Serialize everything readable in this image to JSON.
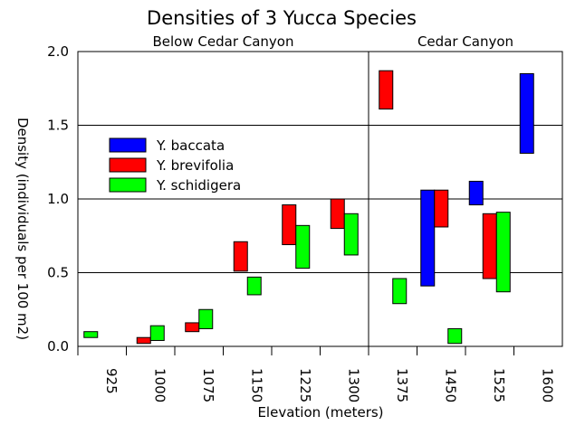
{
  "chart_data": {
    "type": "bar",
    "subtype": "floating-range",
    "title": "Densities of 3 Yucca Species",
    "xlabel": "Elevation (meters)",
    "ylabel": "Density (individuals per 100 m2)",
    "regions": [
      {
        "label": "Below Cedar Canyon",
        "categories": [
          "925",
          "1000",
          "1075",
          "1150",
          "1225",
          "1300"
        ]
      },
      {
        "label": "Cedar Canyon",
        "categories": [
          "1375",
          "1450",
          "1525",
          "1600"
        ]
      }
    ],
    "categories": [
      "925",
      "1000",
      "1075",
      "1150",
      "1225",
      "1300",
      "1375",
      "1450",
      "1525",
      "1600"
    ],
    "ylim": [
      0,
      2.0
    ],
    "yticks": [
      "0.0",
      "0.5",
      "1.0",
      "1.5",
      "2.0"
    ],
    "grid": true,
    "legend_position": "upper-left",
    "series": [
      {
        "name": "Y. baccata",
        "color": "#0000ff",
        "ranges": [
          null,
          null,
          null,
          null,
          null,
          null,
          null,
          [
            0.41,
            1.06
          ],
          [
            0.96,
            1.12
          ],
          [
            1.31,
            1.85
          ]
        ]
      },
      {
        "name": "Y. brevifolia",
        "color": "#ff0000",
        "ranges": [
          null,
          [
            0.02,
            0.06
          ],
          [
            0.1,
            0.16
          ],
          [
            0.51,
            0.71
          ],
          [
            0.69,
            0.96
          ],
          [
            0.8,
            1.0
          ],
          [
            1.61,
            1.87
          ],
          [
            0.81,
            1.06
          ],
          [
            0.46,
            0.9
          ],
          null
        ]
      },
      {
        "name": "Y. schidigera",
        "color": "#00ff00",
        "ranges": [
          [
            0.06,
            0.1
          ],
          [
            0.04,
            0.14
          ],
          [
            0.12,
            0.25
          ],
          [
            0.35,
            0.47
          ],
          [
            0.53,
            0.82
          ],
          [
            0.62,
            0.9
          ],
          [
            0.29,
            0.46
          ],
          [
            0.02,
            0.12
          ],
          [
            0.37,
            0.91
          ],
          null
        ]
      }
    ]
  }
}
